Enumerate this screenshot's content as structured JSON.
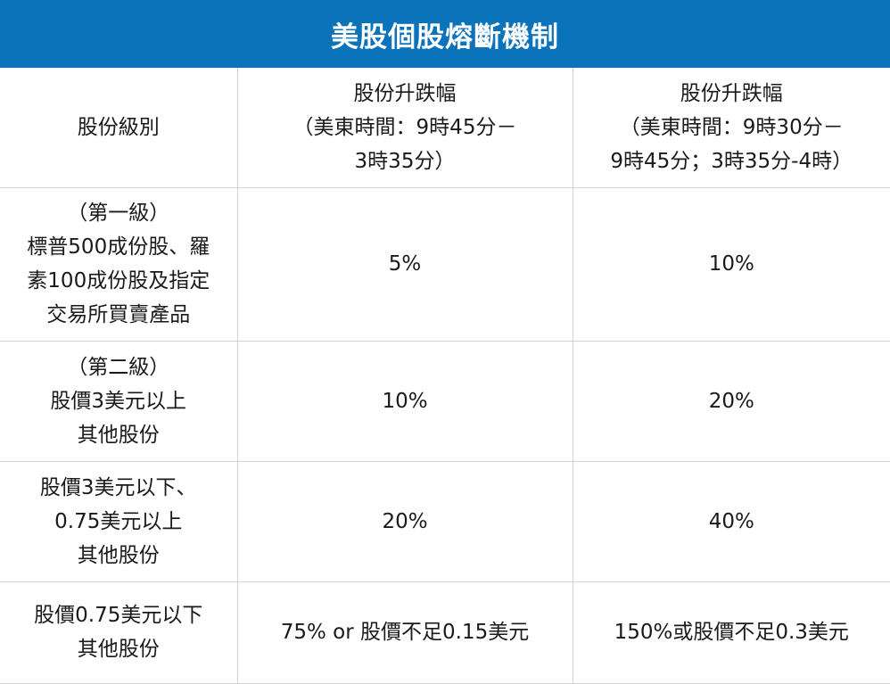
{
  "title": "美股個股熔斷機制",
  "table": {
    "headers": [
      [
        "股份級別"
      ],
      [
        "股份升跌幅",
        "（美東時間：9時45分－",
        "3時35分）"
      ],
      [
        "股份升跌幅",
        "（美東時間：9時30分－",
        "9時45分；3時35分-4時）"
      ]
    ],
    "rows": [
      {
        "level": [
          "（第一級）",
          "標普500成份股、羅",
          "素100成份股及指定",
          "交易所買賣產品"
        ],
        "range_1": "5%",
        "range_2": "10%"
      },
      {
        "level": [
          "（第二級）",
          "股價3美元以上",
          "其他股份"
        ],
        "range_1": "10%",
        "range_2": "20%"
      },
      {
        "level": [
          "股價3美元以下、",
          "0.75美元以上",
          "其他股份"
        ],
        "range_1": "20%",
        "range_2": "40%"
      },
      {
        "level": [
          "股價0.75美元以下",
          "其他股份"
        ],
        "range_1": "75% or 股價不足0.15美元",
        "range_2": "150%或股價不足0.3美元"
      }
    ]
  }
}
